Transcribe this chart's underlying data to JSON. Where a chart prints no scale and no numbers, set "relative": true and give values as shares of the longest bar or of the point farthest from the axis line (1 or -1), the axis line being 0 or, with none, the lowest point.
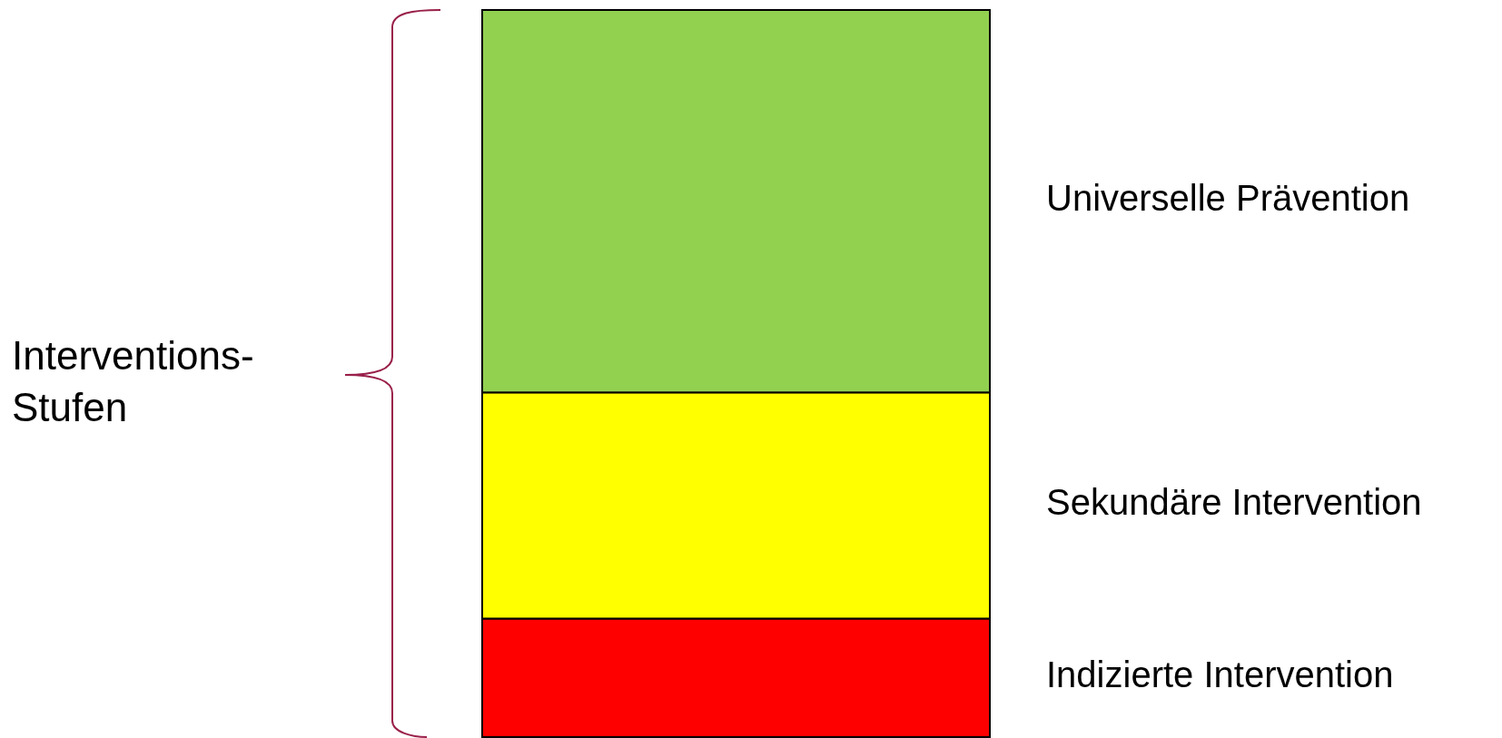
{
  "chart_data": {
    "type": "bar",
    "stacked": true,
    "relative": true,
    "categories": [
      null
    ],
    "annotations": [
      "Interventions-Stufen"
    ],
    "series": [
      {
        "name": "Indizierte Intervention",
        "color": "#ff0000",
        "values": [
          0.163
        ]
      },
      {
        "name": "Sekundäre Intervention",
        "color": "#ffff00",
        "values": [
          0.311
        ]
      },
      {
        "name": "Universelle Prävention",
        "color": "#92d050",
        "values": [
          0.526
        ]
      }
    ]
  }
}
